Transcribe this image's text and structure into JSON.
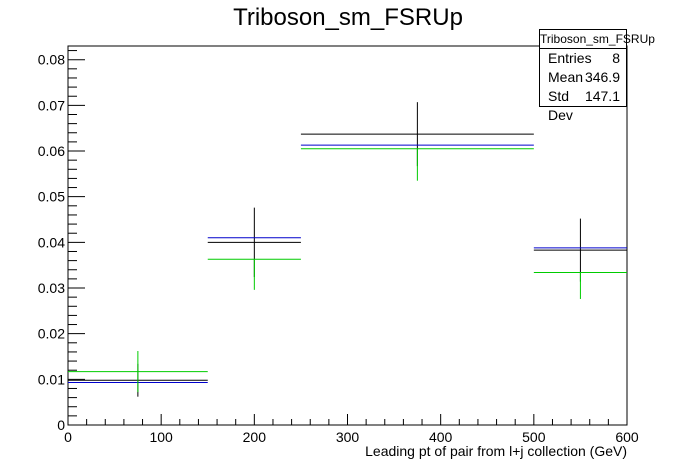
{
  "chart_data": {
    "type": "scatter",
    "title": "Triboson_sm_FSRUp",
    "xlabel": "Leading pt of pair from l+j collection (GeV)",
    "ylabel": "",
    "xlim": [
      0,
      600
    ],
    "ylim": [
      0,
      0.083
    ],
    "x_ticks": [
      0,
      100,
      200,
      300,
      400,
      500,
      600
    ],
    "y_ticks": [
      0,
      0.01,
      0.02,
      0.03,
      0.04,
      0.05,
      0.06,
      0.07,
      0.08
    ],
    "bins": [
      {
        "low": 0,
        "high": 150,
        "center": 75
      },
      {
        "low": 150,
        "high": 250,
        "center": 200
      },
      {
        "low": 250,
        "high": 500,
        "center": 375
      },
      {
        "low": 500,
        "high": 600,
        "center": 550
      }
    ],
    "series": [
      {
        "color": "#000000",
        "values": [
          0.0098,
          0.04,
          0.0637,
          0.0383
        ],
        "err_low": [
          0.0036,
          0.0076,
          0.007,
          0.0069
        ],
        "err_high": [
          0.0036,
          0.0076,
          0.007,
          0.0069
        ]
      },
      {
        "color": "#0000cc",
        "values": [
          0.0093,
          0.041,
          0.0613,
          0.0388
        ],
        "err_low": [
          0,
          0,
          0,
          0
        ],
        "err_high": [
          0,
          0,
          0,
          0
        ]
      },
      {
        "color": "#00cc00",
        "values": [
          0.0117,
          0.0363,
          0.0605,
          0.0334
        ],
        "err_low": [
          0.0045,
          0.0067,
          0.007,
          0.0058
        ],
        "err_high": [
          0.0045,
          0.0,
          0.0,
          0.0
        ]
      }
    ],
    "grid": false,
    "legend": "none"
  },
  "stats_box": {
    "title": "Triboson_sm_FSRUp",
    "rows": [
      {
        "label": "Entries",
        "value": "8"
      },
      {
        "label": "Mean",
        "value": "346.9"
      },
      {
        "label": "Std Dev",
        "value": "147.1"
      }
    ]
  }
}
